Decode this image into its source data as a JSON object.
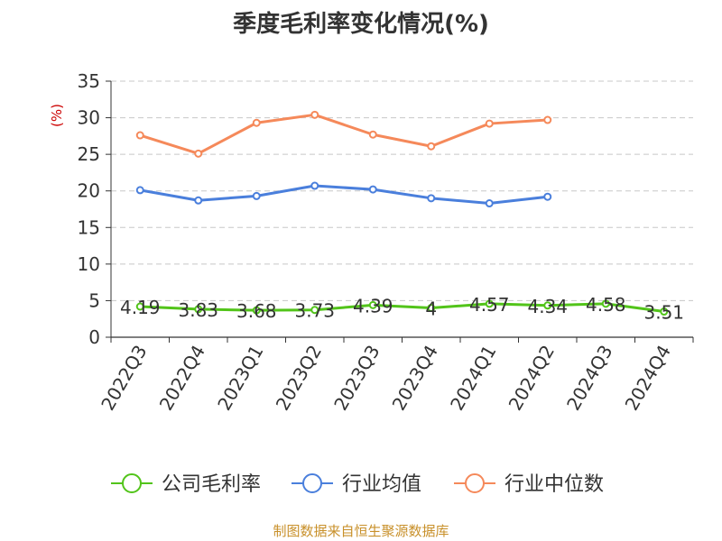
{
  "title": "季度毛利率变化情况(%)",
  "source": "制图数据来自恒生聚源数据库",
  "colors": {
    "company": "#52c41a",
    "industry_avg": "#4a7fdc",
    "industry_median": "#f5895a",
    "axis": "#333333",
    "grid": "#c8c8c8",
    "unit": "#cc0000",
    "source": "#c8902a"
  },
  "chart_data": {
    "type": "line",
    "title": "季度毛利率变化情况(%)",
    "ylabel": "(%)",
    "xlabel": "",
    "ylim": [
      0,
      35
    ],
    "yticks": [
      0,
      5,
      10,
      15,
      20,
      25,
      30,
      35
    ],
    "grid": true,
    "legend_position": "bottom",
    "categories": [
      "2022Q3",
      "2022Q4",
      "2023Q1",
      "2023Q2",
      "2023Q3",
      "2023Q4",
      "2024Q1",
      "2024Q2",
      "2024Q3",
      "2024Q4"
    ],
    "series": [
      {
        "name": "公司毛利率",
        "color": "#52c41a",
        "show_labels": true,
        "values": [
          4.19,
          3.83,
          3.68,
          3.73,
          4.39,
          4,
          4.57,
          4.34,
          4.58,
          3.51
        ]
      },
      {
        "name": "行业均值",
        "color": "#4a7fdc",
        "show_labels": false,
        "values": [
          20.1,
          18.7,
          19.3,
          20.7,
          20.2,
          19.0,
          18.3,
          19.2,
          null,
          null
        ]
      },
      {
        "name": "行业中位数",
        "color": "#f5895a",
        "show_labels": false,
        "values": [
          27.6,
          25.1,
          29.3,
          30.4,
          27.7,
          26.1,
          29.2,
          29.7,
          null,
          null
        ]
      }
    ]
  }
}
